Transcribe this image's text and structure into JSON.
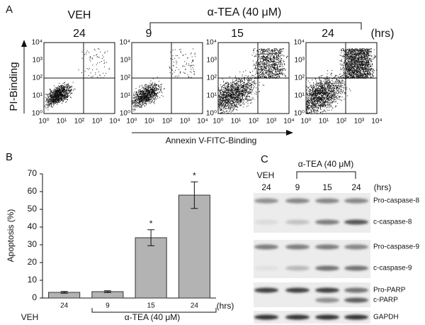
{
  "panel_a": {
    "label": "A",
    "control": "VEH",
    "treatment": "α-TEA (40 μM)",
    "times": [
      "24",
      "9",
      "15",
      "24"
    ],
    "time_unit": "(hrs)",
    "y_label": "PI-Binding",
    "x_label": "Annexin V-FITC-Binding",
    "axis_ticks": [
      "10⁰",
      "10¹",
      "10²",
      "10³",
      "10⁴"
    ]
  },
  "chart_data": {
    "type": "bar",
    "panel_label": "B",
    "y_label": "Apoptosis (%)",
    "categories": [
      "24",
      "9",
      "15",
      "24"
    ],
    "values": [
      3.2,
      3.6,
      34,
      58
    ],
    "errors": [
      0.5,
      0.5,
      4.5,
      7.5
    ],
    "significance": [
      null,
      null,
      "*",
      "*"
    ],
    "color": "#b3b3b3",
    "ylim": [
      0,
      70
    ],
    "yticks": [
      0,
      10,
      20,
      30,
      40,
      50,
      60,
      70
    ],
    "x_unit": "(hrs)",
    "control": "VEH",
    "treatment": "α-TEA (40 μM)"
  },
  "panel_c": {
    "label": "C",
    "control": "VEH",
    "treatment": "α-TEA (40 μM)",
    "times": [
      "24",
      "9",
      "15",
      "24"
    ],
    "time_unit": "(hrs)",
    "bands": [
      "Pro-caspase-8",
      "c-caspase-8",
      "Pro-caspase-9",
      "c-caspase-9",
      "Pro-PARP",
      "c-PARP",
      "GAPDH"
    ]
  }
}
